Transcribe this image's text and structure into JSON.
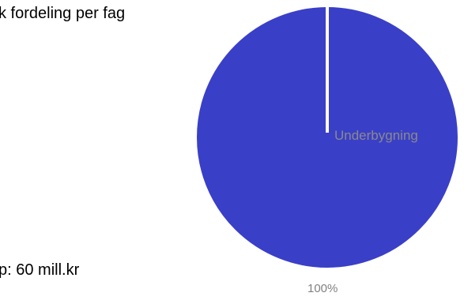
{
  "header": {
    "title": "k fordeling per fag"
  },
  "footer": {
    "text": "p: 60 mill.kr"
  },
  "chart_data": {
    "type": "pie",
    "title": "k fordeling per fag",
    "categories": [
      "Underbygning"
    ],
    "values": [
      100
    ],
    "data_labels": [
      "100%"
    ],
    "legend": {
      "placement": "left",
      "entries": [
        "Underbygning"
      ]
    },
    "colors": {
      "Underbygning": "#3a3fc8"
    }
  }
}
